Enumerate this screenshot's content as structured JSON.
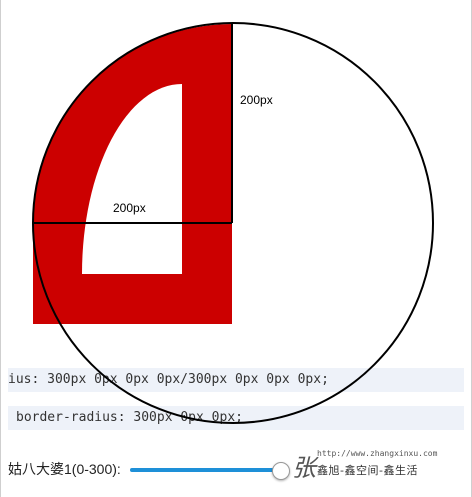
{
  "figure": {
    "vertical_label": "200px",
    "horizontal_label": "200px"
  },
  "code": {
    "line1": "ius: 300px 0px 0px 0px/300px 0px 0px 0px;",
    "line2": "border-radius: 300px 0px 0px;"
  },
  "slider": {
    "label": "姑八大婆1(0-300):",
    "value": 300,
    "min": 0,
    "max": 300,
    "accent_color": "#1e90d8"
  },
  "watermark": {
    "url": "http://www.zhangxinxu.com",
    "brand": "鑫旭-鑫空间-鑫生活",
    "glyph": "张"
  },
  "colors": {
    "shape_fill": "#cc0000",
    "code_bg": "#eef2f9"
  }
}
